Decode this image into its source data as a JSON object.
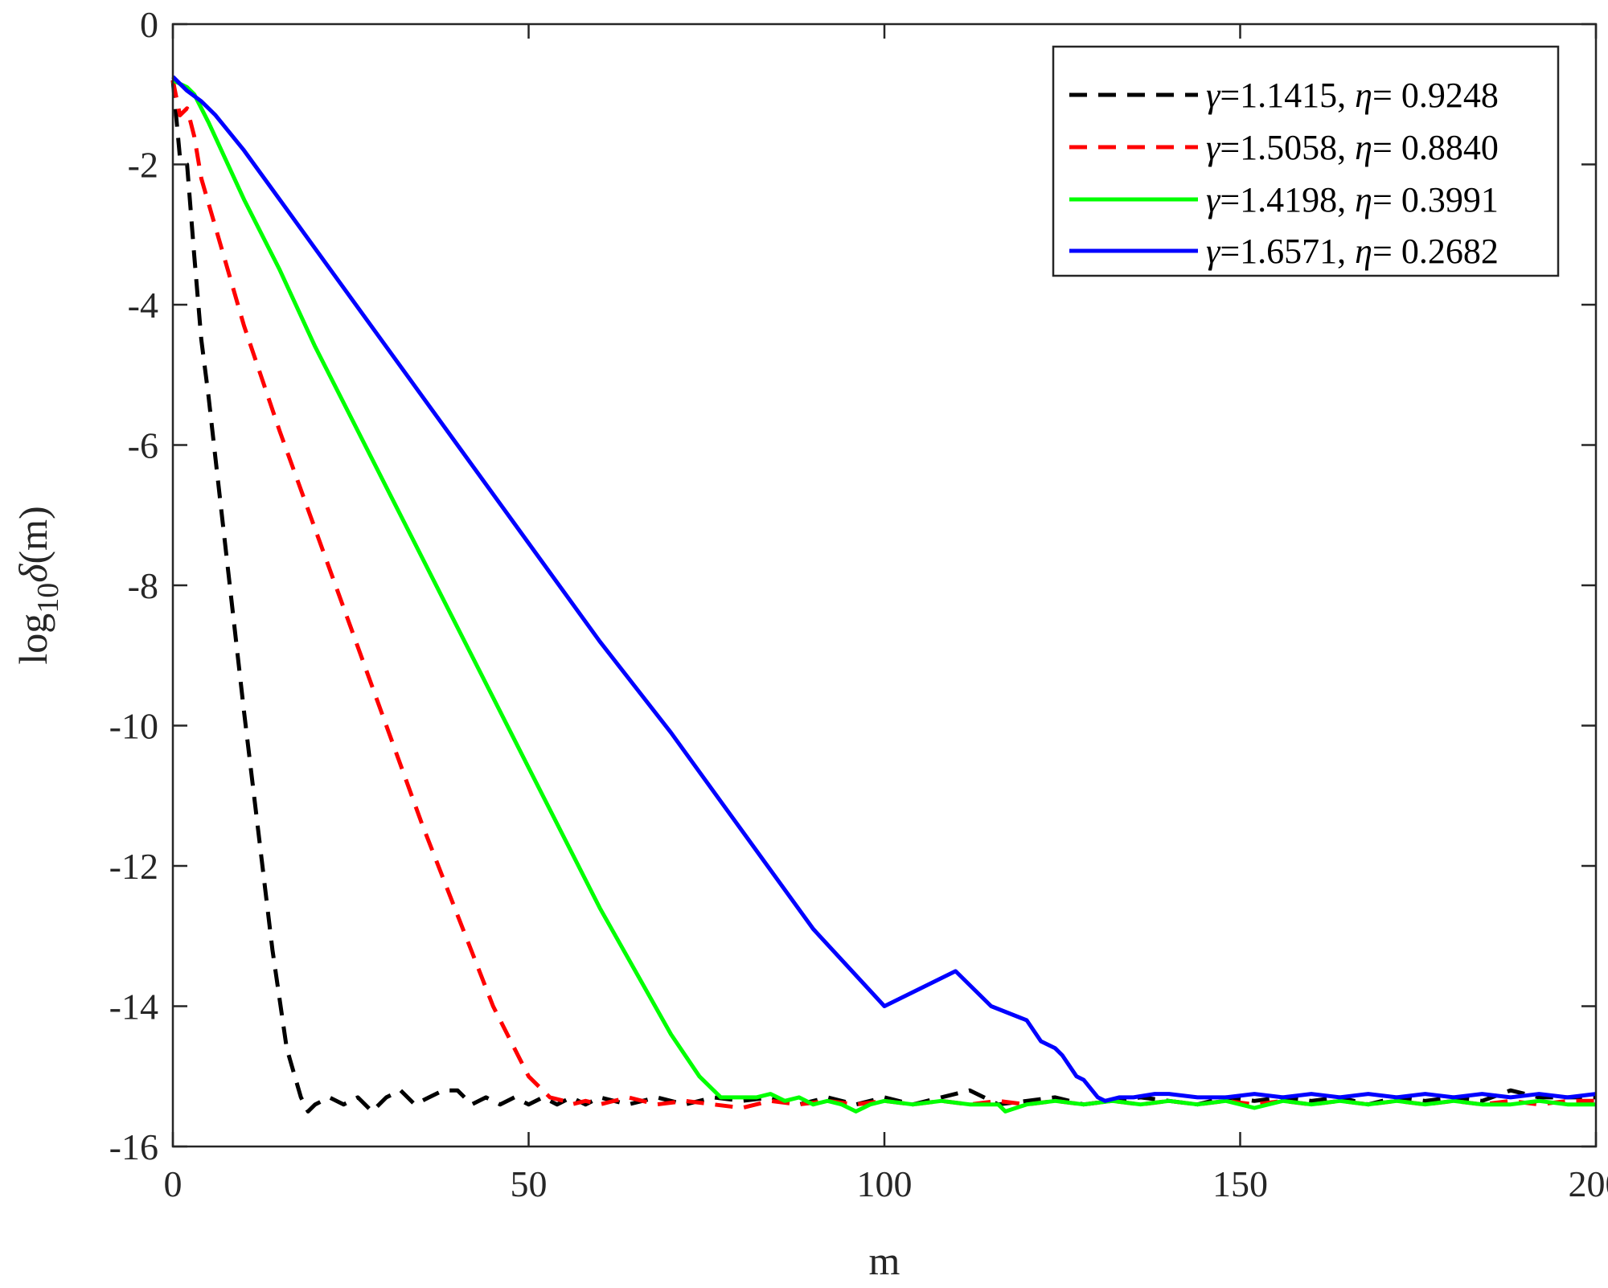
{
  "chart_data": {
    "type": "line",
    "title": "",
    "xlabel": "m",
    "ylabel": "log10 δ(m)",
    "ylabel_parts": {
      "prefix": "log",
      "subscript": "10",
      "symbol": "δ",
      "suffix": "(m)"
    },
    "xlim": [
      0,
      200
    ],
    "ylim": [
      -16,
      0
    ],
    "xticks": [
      0,
      50,
      100,
      150,
      200
    ],
    "yticks": [
      0,
      -2,
      -4,
      -6,
      -8,
      -10,
      -12,
      -14,
      -16
    ],
    "grid": false,
    "legend_position": "top-right",
    "series": [
      {
        "name": "γ=1.1415,   η= 0.9248",
        "gamma": "1.1415",
        "eta": "0.9248",
        "color": "#000000",
        "dash": true,
        "x": [
          0,
          1,
          2,
          3,
          4,
          5,
          6,
          8,
          10,
          12,
          14,
          16,
          18,
          19,
          20,
          22,
          24,
          26,
          28,
          30,
          32,
          34,
          36,
          38,
          40,
          42,
          44,
          46,
          48,
          50,
          52,
          54,
          56,
          58,
          60,
          64,
          68,
          72,
          76,
          80,
          84,
          88,
          92,
          96,
          100,
          104,
          108,
          112,
          116,
          120,
          124,
          128,
          132,
          136,
          140,
          144,
          148,
          152,
          156,
          160,
          164,
          168,
          172,
          176,
          180,
          184,
          188,
          192,
          196,
          200
        ],
        "y": [
          -0.8,
          -1.9,
          -2.0,
          -3.3,
          -4.5,
          -5.3,
          -6.2,
          -8.0,
          -9.8,
          -11.5,
          -13.2,
          -14.6,
          -15.3,
          -15.5,
          -15.4,
          -15.3,
          -15.4,
          -15.3,
          -15.5,
          -15.3,
          -15.2,
          -15.4,
          -15.3,
          -15.2,
          -15.2,
          -15.4,
          -15.3,
          -15.4,
          -15.3,
          -15.4,
          -15.3,
          -15.4,
          -15.3,
          -15.4,
          -15.3,
          -15.4,
          -15.3,
          -15.4,
          -15.3,
          -15.35,
          -15.3,
          -15.4,
          -15.3,
          -15.4,
          -15.3,
          -15.4,
          -15.3,
          -15.2,
          -15.4,
          -15.35,
          -15.3,
          -15.4,
          -15.35,
          -15.3,
          -15.35,
          -15.4,
          -15.3,
          -15.35,
          -15.3,
          -15.35,
          -15.3,
          -15.4,
          -15.3,
          -15.35,
          -15.3,
          -15.35,
          -15.2,
          -15.3,
          -15.3,
          -15.3
        ]
      },
      {
        "name": "γ=1.5058, η= 0.8840",
        "gamma": "1.5058",
        "eta": "0.8840",
        "color": "#ff0000",
        "dash": true,
        "x": [
          0,
          1,
          2,
          3,
          4,
          6,
          8,
          10,
          15,
          20,
          25,
          30,
          35,
          40,
          45,
          50,
          53,
          55,
          56,
          58,
          60,
          64,
          68,
          72,
          76,
          80,
          84,
          88,
          92,
          96,
          100,
          104,
          108,
          112,
          116,
          120,
          124,
          128,
          132,
          136,
          140,
          144,
          148,
          152,
          156,
          160,
          164,
          168,
          172,
          176,
          180,
          184,
          188,
          192,
          196,
          200
        ],
        "y": [
          -0.8,
          -1.3,
          -1.2,
          -1.6,
          -2.2,
          -2.9,
          -3.6,
          -4.3,
          -5.8,
          -7.2,
          -8.6,
          -10.0,
          -11.4,
          -12.7,
          -14.0,
          -15.0,
          -15.3,
          -15.35,
          -15.4,
          -15.35,
          -15.4,
          -15.3,
          -15.4,
          -15.35,
          -15.4,
          -15.45,
          -15.35,
          -15.4,
          -15.35,
          -15.4,
          -15.35,
          -15.4,
          -15.35,
          -15.4,
          -15.35,
          -15.4,
          -15.35,
          -15.4,
          -15.35,
          -15.4,
          -15.35,
          -15.4,
          -15.35,
          -15.4,
          -15.35,
          -15.4,
          -15.35,
          -15.4,
          -15.35,
          -15.4,
          -15.35,
          -15.4,
          -15.35,
          -15.4,
          -15.35,
          -15.35
        ]
      },
      {
        "name": "γ=1.4198, η= 0.3991",
        "gamma": "1.4198",
        "eta": "0.3991",
        "color": "#00ff00",
        "dash": false,
        "x": [
          0,
          1,
          2,
          3,
          5,
          10,
          15,
          20,
          25,
          30,
          35,
          40,
          45,
          50,
          55,
          60,
          65,
          70,
          74,
          77,
          79,
          80,
          82,
          84,
          86,
          88,
          90,
          92,
          94,
          96,
          98,
          100,
          104,
          108,
          112,
          116,
          117,
          120,
          124,
          128,
          132,
          136,
          140,
          144,
          148,
          152,
          156,
          160,
          164,
          168,
          172,
          176,
          180,
          184,
          188,
          192,
          196,
          200
        ],
        "y": [
          -0.8,
          -0.85,
          -0.9,
          -1.0,
          -1.4,
          -2.5,
          -3.5,
          -4.6,
          -5.6,
          -6.6,
          -7.6,
          -8.6,
          -9.6,
          -10.6,
          -11.6,
          -12.6,
          -13.5,
          -14.4,
          -15.0,
          -15.3,
          -15.3,
          -15.3,
          -15.3,
          -15.25,
          -15.35,
          -15.3,
          -15.4,
          -15.35,
          -15.4,
          -15.5,
          -15.4,
          -15.35,
          -15.4,
          -15.35,
          -15.4,
          -15.4,
          -15.5,
          -15.4,
          -15.35,
          -15.4,
          -15.35,
          -15.4,
          -15.35,
          -15.4,
          -15.35,
          -15.45,
          -15.35,
          -15.4,
          -15.35,
          -15.4,
          -15.35,
          -15.4,
          -15.35,
          -15.4,
          -15.4,
          -15.35,
          -15.4,
          -15.4
        ]
      },
      {
        "name": "γ=1.6571, η= 0.2682",
        "gamma": "1.6571",
        "eta": "0.2682",
        "color": "#0000ff",
        "dash": false,
        "x": [
          0,
          1,
          2,
          4,
          6,
          10,
          15,
          20,
          30,
          40,
          50,
          60,
          70,
          80,
          90,
          100,
          110,
          115,
          120,
          122,
          124,
          125,
          127,
          128,
          130,
          131,
          133,
          135,
          138,
          140,
          144,
          148,
          152,
          156,
          160,
          164,
          168,
          172,
          176,
          180,
          184,
          188,
          192,
          196,
          200
        ],
        "y": [
          -0.75,
          -0.85,
          -0.95,
          -1.1,
          -1.3,
          -1.8,
          -2.5,
          -3.2,
          -4.6,
          -6.0,
          -7.4,
          -8.8,
          -10.1,
          -11.5,
          -12.9,
          -14.0,
          -13.5,
          -14.0,
          -14.2,
          -14.5,
          -14.6,
          -14.7,
          -15.0,
          -15.05,
          -15.3,
          -15.35,
          -15.3,
          -15.3,
          -15.25,
          -15.25,
          -15.3,
          -15.3,
          -15.25,
          -15.3,
          -15.25,
          -15.3,
          -15.25,
          -15.3,
          -15.25,
          -15.3,
          -15.25,
          -15.3,
          -15.25,
          -15.3,
          -15.25
        ]
      }
    ]
  },
  "ui": {
    "xlabel": "m",
    "ylabel_prefix": "log",
    "ylabel_sub": "10",
    "ylabel_symbol": "δ",
    "ylabel_suffix": "(m)",
    "legend_gamma_symbol": "γ",
    "legend_eta_symbol": "η"
  }
}
